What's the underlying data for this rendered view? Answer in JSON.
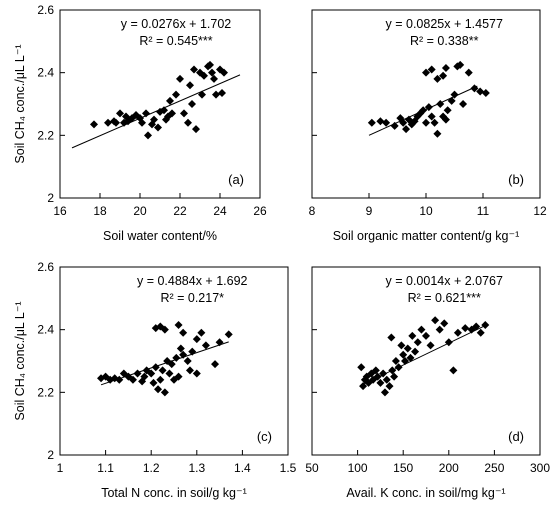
{
  "chart_data": [
    {
      "type": "scatter",
      "panel_label": "(a)",
      "xlabel": "Soil water content/%",
      "ylabel": "Soil CH₄ conc./μL L⁻¹",
      "xlim": [
        16,
        26
      ],
      "ylim": [
        2,
        2.6
      ],
      "xticks": [
        "16",
        "18",
        "20",
        "22",
        "24",
        "26"
      ],
      "yticks": [
        "2",
        "2.2",
        "2.4",
        "2.6"
      ],
      "equation": "y = 0.0276x + 1.702",
      "r2": "R² = 0.545***",
      "trendline": {
        "x": [
          16.6,
          25.0
        ],
        "y": [
          2.16,
          2.393
        ]
      },
      "points": [
        [
          17.7,
          2.235
        ],
        [
          18.4,
          2.24
        ],
        [
          18.7,
          2.245
        ],
        [
          18.8,
          2.24
        ],
        [
          19.0,
          2.27
        ],
        [
          19.2,
          2.24
        ],
        [
          19.3,
          2.26
        ],
        [
          19.4,
          2.245
        ],
        [
          19.6,
          2.255
        ],
        [
          19.8,
          2.265
        ],
        [
          20.0,
          2.255
        ],
        [
          20.1,
          2.24
        ],
        [
          20.3,
          2.27
        ],
        [
          20.4,
          2.2
        ],
        [
          20.6,
          2.235
        ],
        [
          20.7,
          2.25
        ],
        [
          20.9,
          2.225
        ],
        [
          21.0,
          2.275
        ],
        [
          21.2,
          2.28
        ],
        [
          21.3,
          2.25
        ],
        [
          21.4,
          2.26
        ],
        [
          21.5,
          2.31
        ],
        [
          21.6,
          2.27
        ],
        [
          21.8,
          2.33
        ],
        [
          22.0,
          2.38
        ],
        [
          22.2,
          2.27
        ],
        [
          22.4,
          2.24
        ],
        [
          22.5,
          2.36
        ],
        [
          22.6,
          2.3
        ],
        [
          22.7,
          2.41
        ],
        [
          22.8,
          2.22
        ],
        [
          23.0,
          2.4
        ],
        [
          23.1,
          2.33
        ],
        [
          23.2,
          2.39
        ],
        [
          23.4,
          2.42
        ],
        [
          23.5,
          2.425
        ],
        [
          23.6,
          2.4
        ],
        [
          23.7,
          2.38
        ],
        [
          23.8,
          2.33
        ],
        [
          24.0,
          2.41
        ],
        [
          24.1,
          2.335
        ],
        [
          24.2,
          2.4
        ]
      ]
    },
    {
      "type": "scatter",
      "panel_label": "(b)",
      "xlabel": "Soil organic matter content/g kg⁻¹",
      "ylabel": "",
      "xlim": [
        8,
        12
      ],
      "ylim": [
        2,
        2.6
      ],
      "xticks": [
        "8",
        "9",
        "10",
        "11",
        "12"
      ],
      "yticks": [],
      "equation": "y = 0.0825x + 1.4577",
      "r2": "R² = 0.338**",
      "trendline": {
        "x": [
          9.0,
          10.9
        ],
        "y": [
          2.2,
          2.357
        ]
      },
      "points": [
        [
          9.05,
          2.24
        ],
        [
          9.2,
          2.245
        ],
        [
          9.3,
          2.24
        ],
        [
          9.45,
          2.23
        ],
        [
          9.55,
          2.255
        ],
        [
          9.6,
          2.24
        ],
        [
          9.65,
          2.22
        ],
        [
          9.7,
          2.25
        ],
        [
          9.75,
          2.235
        ],
        [
          9.8,
          2.245
        ],
        [
          9.85,
          2.26
        ],
        [
          9.9,
          2.27
        ],
        [
          9.95,
          2.28
        ],
        [
          10.0,
          2.24
        ],
        [
          10.05,
          2.29
        ],
        [
          10.1,
          2.26
        ],
        [
          10.15,
          2.24
        ],
        [
          10.2,
          2.205
        ],
        [
          10.25,
          2.3
        ],
        [
          10.3,
          2.26
        ],
        [
          10.35,
          2.25
        ],
        [
          10.38,
          2.28
        ],
        [
          10.0,
          2.4
        ],
        [
          10.1,
          2.41
        ],
        [
          10.2,
          2.38
        ],
        [
          10.3,
          2.39
        ],
        [
          10.35,
          2.415
        ],
        [
          10.45,
          2.31
        ],
        [
          10.5,
          2.33
        ],
        [
          10.55,
          2.42
        ],
        [
          10.6,
          2.425
        ],
        [
          10.65,
          2.3
        ],
        [
          10.75,
          2.4
        ],
        [
          10.85,
          2.35
        ],
        [
          10.95,
          2.34
        ],
        [
          11.05,
          2.335
        ]
      ]
    },
    {
      "type": "scatter",
      "panel_label": "(c)",
      "xlabel": "Total N conc. in soil/g kg⁻¹",
      "ylabel": "Soil CH₄ conc./μL L⁻¹",
      "xlim": [
        1,
        1.5
      ],
      "ylim": [
        2,
        2.6
      ],
      "xticks": [
        "1",
        "1.1",
        "1.2",
        "1.3",
        "1.4",
        "1.5"
      ],
      "yticks": [
        "2",
        "2.2",
        "2.4",
        "2.6"
      ],
      "equation": "y = 0.4884x + 1.692",
      "r2": "R² = 0.217*",
      "trendline": {
        "x": [
          1.09,
          1.37
        ],
        "y": [
          2.224,
          2.361
        ]
      },
      "points": [
        [
          1.09,
          2.245
        ],
        [
          1.1,
          2.25
        ],
        [
          1.11,
          2.24
        ],
        [
          1.12,
          2.245
        ],
        [
          1.13,
          2.24
        ],
        [
          1.14,
          2.26
        ],
        [
          1.15,
          2.25
        ],
        [
          1.16,
          2.24
        ],
        [
          1.17,
          2.26
        ],
        [
          1.18,
          2.235
        ],
        [
          1.185,
          2.25
        ],
        [
          1.19,
          2.27
        ],
        [
          1.2,
          2.26
        ],
        [
          1.205,
          2.23
        ],
        [
          1.21,
          2.28
        ],
        [
          1.215,
          2.21
        ],
        [
          1.22,
          2.24
        ],
        [
          1.225,
          2.27
        ],
        [
          1.23,
          2.2
        ],
        [
          1.235,
          2.3
        ],
        [
          1.24,
          2.26
        ],
        [
          1.245,
          2.29
        ],
        [
          1.25,
          2.24
        ],
        [
          1.255,
          2.31
        ],
        [
          1.26,
          2.25
        ],
        [
          1.265,
          2.34
        ],
        [
          1.27,
          2.32
        ],
        [
          1.28,
          2.3
        ],
        [
          1.285,
          2.27
        ],
        [
          1.29,
          2.33
        ],
        [
          1.3,
          2.26
        ],
        [
          1.31,
          2.39
        ],
        [
          1.32,
          2.35
        ],
        [
          1.34,
          2.29
        ],
        [
          1.35,
          2.36
        ],
        [
          1.37,
          2.385
        ],
        [
          1.21,
          2.405
        ],
        [
          1.22,
          2.41
        ],
        [
          1.23,
          2.4
        ],
        [
          1.26,
          2.415
        ],
        [
          1.27,
          2.39
        ],
        [
          1.3,
          2.37
        ]
      ]
    },
    {
      "type": "scatter",
      "panel_label": "(d)",
      "xlabel": "Avail. K conc. in soil/mg kg⁻¹",
      "ylabel": "",
      "xlim": [
        50,
        300
      ],
      "ylim": [
        2,
        2.6
      ],
      "xticks": [
        "50",
        "100",
        "150",
        "200",
        "250",
        "300"
      ],
      "yticks": [],
      "equation": "y = 0.0014x + 2.0767",
      "r2": "R² = 0.621***",
      "trendline": {
        "x": [
          105,
          240
        ],
        "y": [
          2.224,
          2.413
        ]
      },
      "points": [
        [
          104,
          2.28
        ],
        [
          106,
          2.22
        ],
        [
          108,
          2.24
        ],
        [
          110,
          2.25
        ],
        [
          112,
          2.23
        ],
        [
          115,
          2.26
        ],
        [
          117,
          2.24
        ],
        [
          120,
          2.27
        ],
        [
          122,
          2.25
        ],
        [
          125,
          2.23
        ],
        [
          128,
          2.26
        ],
        [
          130,
          2.2
        ],
        [
          132,
          2.24
        ],
        [
          135,
          2.22
        ],
        [
          138,
          2.27
        ],
        [
          140,
          2.25
        ],
        [
          142,
          2.3
        ],
        [
          145,
          2.28
        ],
        [
          148,
          2.35
        ],
        [
          150,
          2.32
        ],
        [
          152,
          2.3
        ],
        [
          155,
          2.34
        ],
        [
          158,
          2.31
        ],
        [
          160,
          2.38
        ],
        [
          163,
          2.33
        ],
        [
          166,
          2.36
        ],
        [
          170,
          2.4
        ],
        [
          175,
          2.38
        ],
        [
          180,
          2.35
        ],
        [
          185,
          2.43
        ],
        [
          190,
          2.4
        ],
        [
          195,
          2.42
        ],
        [
          200,
          2.36
        ],
        [
          205,
          2.27
        ],
        [
          210,
          2.39
        ],
        [
          218,
          2.405
        ],
        [
          225,
          2.4
        ],
        [
          230,
          2.41
        ],
        [
          235,
          2.39
        ],
        [
          240,
          2.415
        ],
        [
          137,
          2.375
        ]
      ]
    }
  ]
}
